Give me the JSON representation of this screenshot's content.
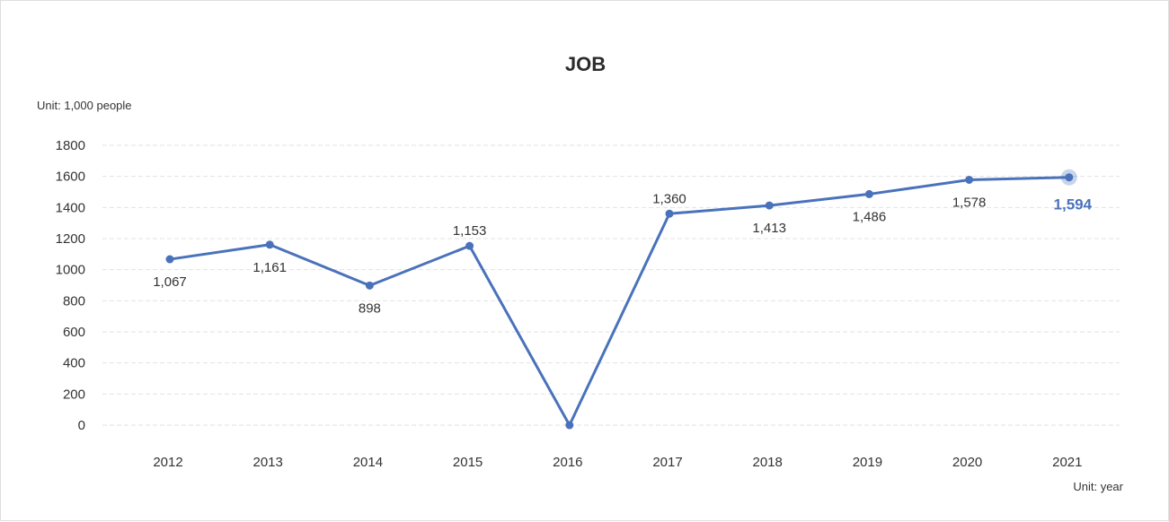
{
  "chart_data": {
    "type": "line",
    "title": "JOB",
    "y_unit_label": "Unit: 1,000 people",
    "x_unit_label": "Unit: year",
    "categories": [
      "2012",
      "2013",
      "2014",
      "2015",
      "2016",
      "2017",
      "2018",
      "2019",
      "2020",
      "2021"
    ],
    "series": [
      {
        "values": [
          1067,
          1161,
          898,
          1153,
          0,
          1360,
          1413,
          1486,
          1578,
          1594
        ],
        "data_labels": [
          "1,067",
          "1,161",
          "898",
          "1,153",
          "",
          "1,360",
          "1,413",
          "1,486",
          "1,578",
          "1,594"
        ],
        "highlight_last": true
      }
    ],
    "ylim": [
      0,
      1800
    ],
    "yticks": [
      0,
      200,
      400,
      600,
      800,
      1000,
      1200,
      1400,
      1600,
      1800
    ],
    "grid": true,
    "grid_style": "dashed",
    "line_color": "#4a72bb",
    "grid_color": "#e2e2e2",
    "highlight_color": "#4a72bb"
  }
}
